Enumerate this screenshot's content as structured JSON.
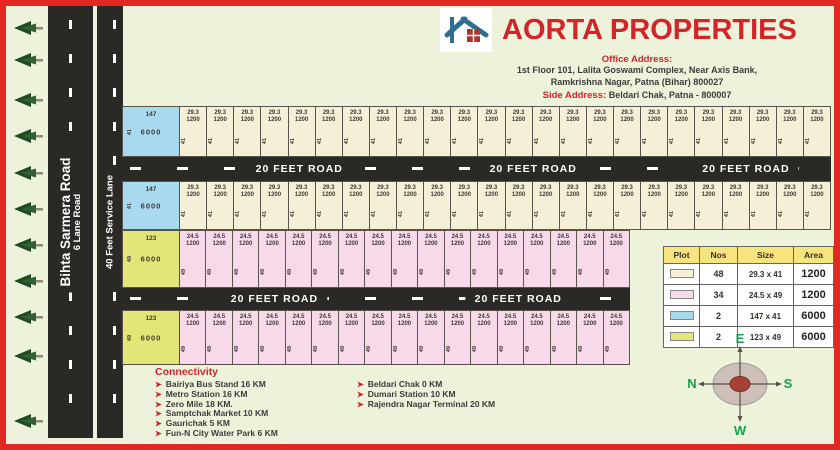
{
  "header": {
    "title": "AORTA PROPERTIES",
    "office_address_label": "Office Address:",
    "office_address_line1": "1st Floor 101, Lalita Goswami Complex, Near Axis Bank,",
    "office_address_line2": "Ramkrishna Nagar, Patna (Bihar) 800027",
    "side_address_label": "Side Address:",
    "side_address": "Beldari Chak, Patna - 800007"
  },
  "roads": {
    "main_road_name": "Bihta Sarmera Road",
    "main_road_sub": "6 Lane Road",
    "service_lane": "40 Feet  Service Lane",
    "cross_road_label": "20 FEET ROAD"
  },
  "plots": {
    "cream": {
      "dim": "29.3",
      "area": "1200",
      "side": "41",
      "count_per_row": 24
    },
    "pink": {
      "dim": "24.5",
      "area": "1200",
      "side": "49",
      "count_per_row": 17
    },
    "blue": {
      "dim": "147",
      "area": "6000",
      "side": "41"
    },
    "yellow": {
      "dim": "123",
      "area": "6000",
      "side": "49"
    }
  },
  "legend": {
    "headers": [
      "Plot",
      "Nos",
      "Size",
      "Area"
    ],
    "rows": [
      {
        "color": "#f6efd8",
        "nos": "48",
        "size": "29.3 x 41",
        "area": "1200"
      },
      {
        "color": "#f8d9e9",
        "nos": "34",
        "size": "24.5 x 49",
        "area": "1200"
      },
      {
        "color": "#a9d9ef",
        "nos": "2",
        "size": "147 x 41",
        "area": "6000"
      },
      {
        "color": "#e4e578",
        "nos": "2",
        "size": "123 x 49",
        "area": "6000"
      }
    ]
  },
  "compass": {
    "top": "E",
    "right": "S",
    "bottom": "W",
    "left": "N"
  },
  "connectivity": {
    "title": "Connectivity",
    "left": [
      "Bairiya Bus Stand 16 KM",
      "Metro Station 16 KM",
      "Zero Mile 18 KM.",
      "Samptchak Market 10 KM",
      "Gaurichak 5  KM",
      "Fun-N City Water Park 6 KM"
    ],
    "right": [
      "Beldari Chak 0 KM",
      "Dumari Station 10 KM",
      "Rajendra Nagar Terminal 20 KM"
    ]
  },
  "colors": {
    "accent_red": "#d42429",
    "road_dark": "#2b2925",
    "plot_cream": "#f6efd8",
    "plot_pink": "#f8d9e9",
    "plot_blue": "#a9d9ef",
    "plot_yellow": "#e4e578",
    "compass_green": "#18a14c"
  }
}
